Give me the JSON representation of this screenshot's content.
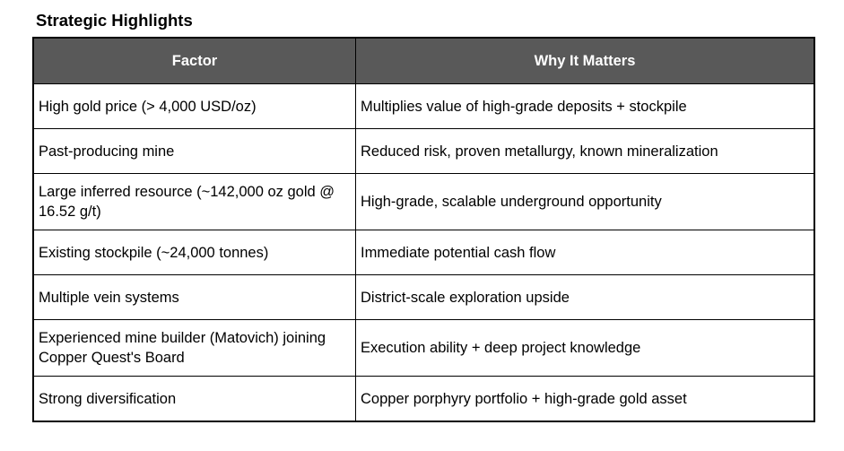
{
  "title": "Strategic Highlights",
  "headers": [
    "Factor",
    "Why It Matters"
  ],
  "rows": [
    {
      "factor": "High gold price (> 4,000 USD/oz)",
      "why": "Multiplies value of high-grade deposits + stockpile"
    },
    {
      "factor": "Past-producing mine",
      "why": "Reduced risk, proven metallurgy, known mineralization"
    },
    {
      "factor": "Large inferred resource (~142,000 oz gold @ 16.52 g/t)",
      "why": "High-grade, scalable underground opportunity"
    },
    {
      "factor": "Existing stockpile (~24,000 tonnes)",
      "why": "Immediate potential cash flow"
    },
    {
      "factor": "Multiple vein systems",
      "why": "District-scale exploration upside"
    },
    {
      "factor": "Experienced mine builder (Matovich) joining Copper Quest's Board",
      "why": "Execution ability + deep project knowledge"
    },
    {
      "factor": "Strong diversification",
      "why": "Copper porphyry portfolio + high-grade gold asset"
    }
  ]
}
